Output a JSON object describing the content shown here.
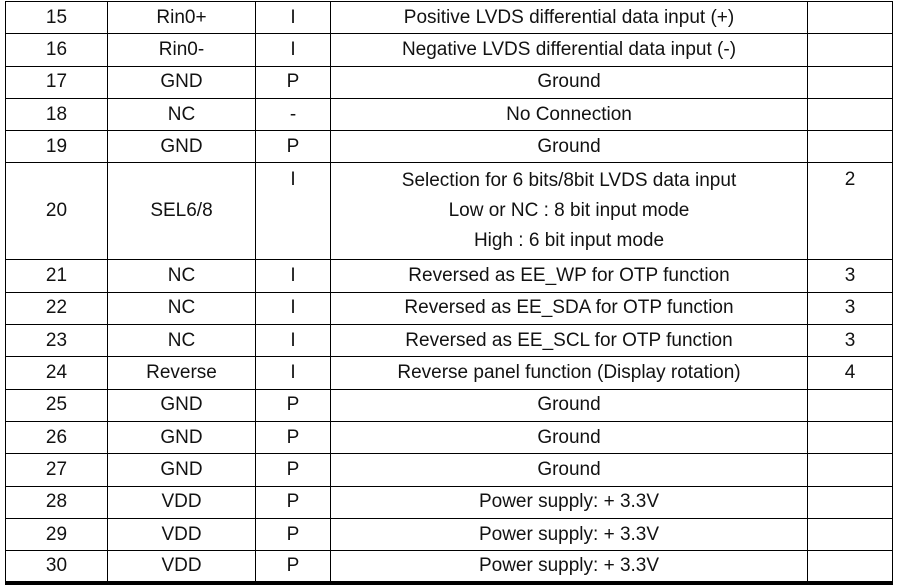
{
  "table": {
    "name": "pin-assignment-table",
    "colors": {
      "border": "#000000",
      "text": "#121212",
      "background": "#ffffff"
    },
    "rows": [
      {
        "pin": "15",
        "symbol": "Rin0+",
        "io": "I",
        "desc": [
          "Positive LVDS differential data input (+)"
        ],
        "note": ""
      },
      {
        "pin": "16",
        "symbol": "Rin0-",
        "io": "I",
        "desc": [
          "Negative LVDS differential data input (-)"
        ],
        "note": ""
      },
      {
        "pin": "17",
        "symbol": "GND",
        "io": "P",
        "desc": [
          "Ground"
        ],
        "note": ""
      },
      {
        "pin": "18",
        "symbol": "NC",
        "io": "-",
        "desc": [
          "No Connection"
        ],
        "note": ""
      },
      {
        "pin": "19",
        "symbol": "GND",
        "io": "P",
        "desc": [
          "Ground"
        ],
        "note": ""
      },
      {
        "pin": "20",
        "symbol": "SEL6/8",
        "io": "I",
        "desc": [
          "Selection for 6 bits/8bit LVDS data input",
          "Low or NC : 8 bit input mode",
          "High : 6 bit input mode"
        ],
        "note": "2"
      },
      {
        "pin": "21",
        "symbol": "NC",
        "io": "I",
        "desc": [
          "Reversed as EE_WP for OTP function"
        ],
        "note": "3"
      },
      {
        "pin": "22",
        "symbol": "NC",
        "io": "I",
        "desc": [
          "Reversed as EE_SDA for OTP function"
        ],
        "note": "3"
      },
      {
        "pin": "23",
        "symbol": "NC",
        "io": "I",
        "desc": [
          "Reversed as EE_SCL for OTP function"
        ],
        "note": "3"
      },
      {
        "pin": "24",
        "symbol": "Reverse",
        "io": "I",
        "io_font": "serif",
        "desc": [
          "Reverse panel function (Display rotation)"
        ],
        "note": "4"
      },
      {
        "pin": "25",
        "symbol": "GND",
        "io": "P",
        "desc": [
          "Ground"
        ],
        "note": ""
      },
      {
        "pin": "26",
        "symbol": "GND",
        "io": "P",
        "desc": [
          "Ground"
        ],
        "note": ""
      },
      {
        "pin": "27",
        "symbol": "GND",
        "io": "P",
        "desc": [
          "Ground"
        ],
        "note": ""
      },
      {
        "pin": "28",
        "symbol": "VDD",
        "io": "P",
        "desc": [
          "Power supply: + 3.3V"
        ],
        "note": ""
      },
      {
        "pin": "29",
        "symbol": "VDD",
        "io": "P",
        "desc": [
          "Power supply: + 3.3V"
        ],
        "note": ""
      },
      {
        "pin": "30",
        "symbol": "VDD",
        "io": "P",
        "desc": [
          "Power supply: + 3.3V"
        ],
        "note": ""
      }
    ]
  }
}
